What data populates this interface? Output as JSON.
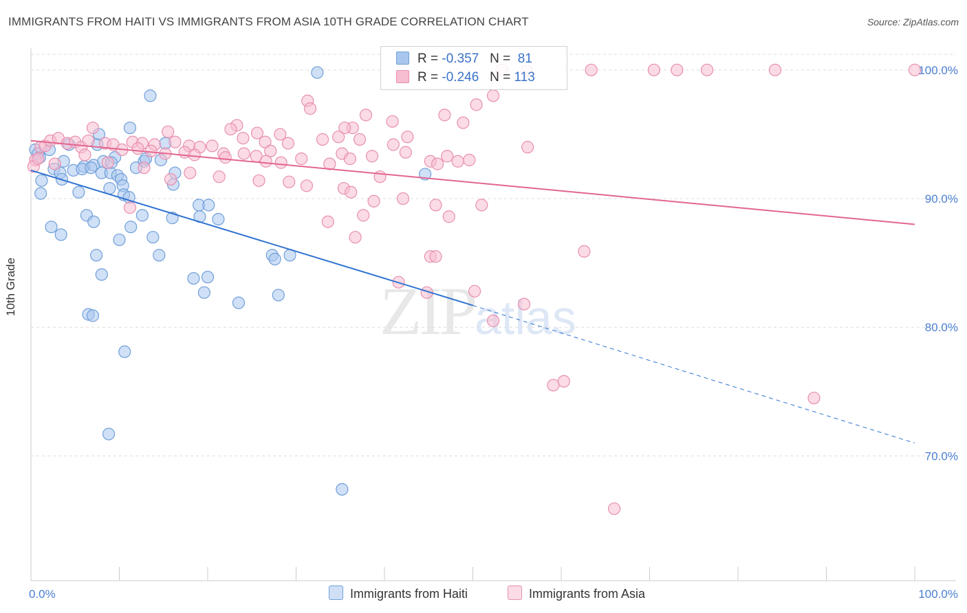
{
  "title": "IMMIGRANTS FROM HAITI VS IMMIGRANTS FROM ASIA 10TH GRADE CORRELATION CHART",
  "source": "Source: ZipAtlas.com",
  "watermark": {
    "zip": "ZIP",
    "atlas": "atlas"
  },
  "legend": {
    "rows": [
      {
        "r_label": "R =",
        "r_value": "-0.357",
        "n_label": "N =",
        "n_value": "81",
        "color": "#a9c7ee",
        "border": "#6f9fd9"
      },
      {
        "r_label": "R =",
        "r_value": "-0.246",
        "n_label": "N =",
        "n_value": "113",
        "color": "#f7bdd0",
        "border": "#e78fb0"
      }
    ]
  },
  "bottom_legend": [
    {
      "label": "Immigrants from Haiti",
      "color": "#a9c7ee",
      "border": "#6f9fd9"
    },
    {
      "label": "Immigrants from Asia",
      "color": "#f7bdd0",
      "border": "#e78fb0"
    }
  ],
  "chart_data": {
    "type": "scatter",
    "title": "IMMIGRANTS FROM HAITI VS IMMIGRANTS FROM ASIA 10TH GRADE CORRELATION CHART",
    "xlabel": "",
    "ylabel": "10th Grade",
    "xlim": [
      0,
      100
    ],
    "ylim": [
      60.3,
      101.7
    ],
    "x_tick_labels": [
      "0.0%",
      "100.0%"
    ],
    "y_ticks": [
      70,
      80,
      90,
      100
    ],
    "y_tick_labels": [
      "70.0%",
      "80.0%",
      "90.0%",
      "100.0%"
    ],
    "grid": true,
    "series": [
      {
        "name": "Immigrants from Haiti",
        "color": "#6f9fd9",
        "fill": "#a9c7ee",
        "trend": {
          "x0": 0,
          "y0": 92.2,
          "x1": 50,
          "y1": 81.7,
          "dash_to_x": 100,
          "dash_to_y": 71.0,
          "color": "#2f73d0"
        },
        "points": [
          [
            32.4,
            99.8
          ],
          [
            13.5,
            98.0
          ],
          [
            11.2,
            95.5
          ],
          [
            7.7,
            95.0
          ],
          [
            0.5,
            93.8
          ],
          [
            0.8,
            93.5
          ],
          [
            2.1,
            93.8
          ],
          [
            4.3,
            94.2
          ],
          [
            7.5,
            94.2
          ],
          [
            15.2,
            94.3
          ],
          [
            1.0,
            93.2
          ],
          [
            3.7,
            92.9
          ],
          [
            6.0,
            92.5
          ],
          [
            7.1,
            92.6
          ],
          [
            8.2,
            92.9
          ],
          [
            9.5,
            93.2
          ],
          [
            12.8,
            92.9
          ],
          [
            13.0,
            93.1
          ],
          [
            14.7,
            93.0
          ],
          [
            11.9,
            92.4
          ],
          [
            2.6,
            92.3
          ],
          [
            3.3,
            92.0
          ],
          [
            4.8,
            92.2
          ],
          [
            5.8,
            92.3
          ],
          [
            8.0,
            92.0
          ],
          [
            9.0,
            92.0
          ],
          [
            9.8,
            91.8
          ],
          [
            16.3,
            92.0
          ],
          [
            1.2,
            91.4
          ],
          [
            3.5,
            91.5
          ],
          [
            10.2,
            91.5
          ],
          [
            10.4,
            91.0
          ],
          [
            8.9,
            90.8
          ],
          [
            1.1,
            90.4
          ],
          [
            5.4,
            90.5
          ],
          [
            10.5,
            90.3
          ],
          [
            11.1,
            90.1
          ],
          [
            16.1,
            91.1
          ],
          [
            19.0,
            89.5
          ],
          [
            20.1,
            89.5
          ],
          [
            6.3,
            88.7
          ],
          [
            12.6,
            88.7
          ],
          [
            16.0,
            88.5
          ],
          [
            19.1,
            88.6
          ],
          [
            21.2,
            88.4
          ],
          [
            7.1,
            88.2
          ],
          [
            2.3,
            87.8
          ],
          [
            11.3,
            87.8
          ],
          [
            3.4,
            87.2
          ],
          [
            10.0,
            86.8
          ],
          [
            13.8,
            87.0
          ],
          [
            7.4,
            85.6
          ],
          [
            14.5,
            85.6
          ],
          [
            27.3,
            85.6
          ],
          [
            29.3,
            85.6
          ],
          [
            27.6,
            85.3
          ],
          [
            8.0,
            84.1
          ],
          [
            18.4,
            83.8
          ],
          [
            20.0,
            83.9
          ],
          [
            19.6,
            82.7
          ],
          [
            23.5,
            81.9
          ],
          [
            28.0,
            82.5
          ],
          [
            6.5,
            81.0
          ],
          [
            7.0,
            80.9
          ],
          [
            10.6,
            78.1
          ],
          [
            8.8,
            71.7
          ],
          [
            35.2,
            67.4
          ],
          [
            44.6,
            91.9
          ],
          [
            9.1,
            92.8
          ],
          [
            6.8,
            92.4
          ]
        ]
      },
      {
        "name": "Immigrants from Asia",
        "color": "#e78fb0",
        "fill": "#f7bdd0",
        "trend": {
          "x0": 0,
          "y0": 94.5,
          "x1": 100,
          "y1": 88.0,
          "color": "#e26590"
        },
        "points": [
          [
            53.3,
            100.0
          ],
          [
            56.1,
            99.9
          ],
          [
            63.4,
            100.0
          ],
          [
            70.5,
            100.0
          ],
          [
            73.1,
            100.0
          ],
          [
            76.5,
            100.0
          ],
          [
            84.2,
            100.0
          ],
          [
            100.0,
            100.0
          ],
          [
            31.3,
            97.6
          ],
          [
            52.3,
            98.0
          ],
          [
            31.6,
            97.0
          ],
          [
            50.4,
            97.3
          ],
          [
            46.8,
            96.5
          ],
          [
            48.9,
            95.9
          ],
          [
            40.9,
            96.0
          ],
          [
            37.9,
            96.5
          ],
          [
            36.4,
            95.5
          ],
          [
            35.5,
            95.5
          ],
          [
            23.3,
            95.7
          ],
          [
            22.6,
            95.4
          ],
          [
            7.0,
            95.5
          ],
          [
            15.5,
            95.2
          ],
          [
            25.6,
            95.1
          ],
          [
            28.2,
            95.0
          ],
          [
            34.8,
            94.8
          ],
          [
            42.6,
            94.8
          ],
          [
            33.0,
            94.6
          ],
          [
            37.2,
            94.6
          ],
          [
            1.1,
            94.0
          ],
          [
            1.6,
            94.1
          ],
          [
            2.2,
            94.5
          ],
          [
            3.1,
            94.7
          ],
          [
            4.1,
            94.3
          ],
          [
            5.0,
            94.4
          ],
          [
            5.7,
            94.0
          ],
          [
            6.5,
            94.5
          ],
          [
            8.4,
            94.3
          ],
          [
            9.3,
            94.2
          ],
          [
            11.5,
            94.4
          ],
          [
            12.6,
            94.3
          ],
          [
            14.0,
            94.2
          ],
          [
            16.3,
            94.4
          ],
          [
            17.9,
            94.1
          ],
          [
            19.1,
            94.0
          ],
          [
            20.5,
            94.1
          ],
          [
            24.0,
            94.7
          ],
          [
            26.5,
            94.4
          ],
          [
            29.1,
            94.3
          ],
          [
            10.3,
            93.8
          ],
          [
            12.1,
            93.9
          ],
          [
            13.6,
            93.7
          ],
          [
            15.2,
            93.5
          ],
          [
            17.4,
            93.6
          ],
          [
            18.5,
            93.4
          ],
          [
            21.8,
            93.5
          ],
          [
            24.1,
            93.5
          ],
          [
            25.5,
            93.3
          ],
          [
            27.1,
            93.7
          ],
          [
            30.6,
            93.1
          ],
          [
            35.2,
            93.5
          ],
          [
            38.6,
            93.3
          ],
          [
            41.0,
            94.2
          ],
          [
            42.4,
            93.6
          ],
          [
            47.1,
            93.3
          ],
          [
            48.3,
            92.9
          ],
          [
            56.2,
            94.0
          ],
          [
            0.5,
            93.0
          ],
          [
            6.1,
            93.4
          ],
          [
            22.0,
            93.2
          ],
          [
            26.6,
            92.9
          ],
          [
            28.3,
            92.8
          ],
          [
            33.8,
            92.7
          ],
          [
            36.1,
            93.1
          ],
          [
            45.2,
            92.9
          ],
          [
            46.0,
            92.7
          ],
          [
            49.6,
            93.0
          ],
          [
            8.7,
            92.8
          ],
          [
            0.3,
            92.5
          ],
          [
            12.8,
            92.4
          ],
          [
            18.0,
            92.0
          ],
          [
            15.8,
            91.5
          ],
          [
            21.3,
            91.7
          ],
          [
            25.8,
            91.4
          ],
          [
            29.2,
            91.3
          ],
          [
            31.2,
            91.0
          ],
          [
            39.5,
            91.7
          ],
          [
            35.4,
            90.8
          ],
          [
            36.2,
            90.5
          ],
          [
            42.1,
            90.0
          ],
          [
            38.8,
            89.8
          ],
          [
            45.8,
            89.5
          ],
          [
            51.0,
            89.5
          ],
          [
            37.6,
            88.7
          ],
          [
            47.3,
            88.6
          ],
          [
            33.6,
            88.2
          ],
          [
            36.7,
            87.0
          ],
          [
            0.8,
            93.1
          ],
          [
            2.7,
            92.7
          ],
          [
            62.6,
            85.9
          ],
          [
            45.2,
            85.5
          ],
          [
            45.8,
            85.5
          ],
          [
            41.6,
            83.5
          ],
          [
            44.8,
            82.7
          ],
          [
            50.2,
            82.8
          ],
          [
            55.8,
            81.8
          ],
          [
            52.3,
            80.5
          ],
          [
            60.3,
            75.8
          ],
          [
            59.1,
            75.5
          ],
          [
            88.6,
            74.5
          ],
          [
            66.0,
            65.9
          ],
          [
            11.2,
            89.3
          ]
        ]
      }
    ]
  }
}
